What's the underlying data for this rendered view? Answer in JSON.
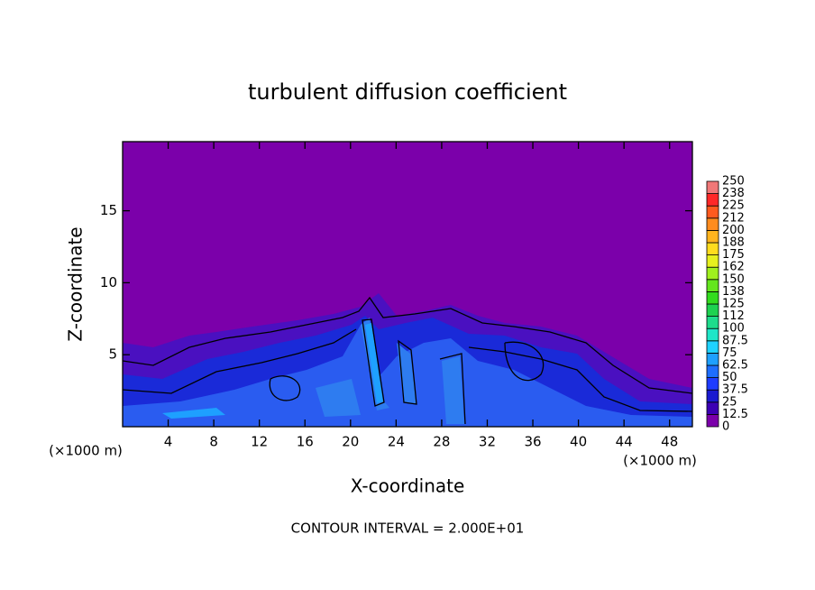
{
  "chart_data": {
    "type": "contour",
    "title": "turbulent diffusion coefficient",
    "x_label": "X-coordinate",
    "y_label": "Z-coordinate",
    "x_unit_label": "(×1000 m)",
    "y_unit_label": "(×1000 m)",
    "annotation": "CONTOUR INTERVAL = 2.000E+01",
    "xlim": [
      0,
      50
    ],
    "xticks": [
      4,
      8,
      12,
      16,
      20,
      24,
      28,
      32,
      36,
      40,
      44,
      48
    ],
    "ylim": [
      0,
      19.8
    ],
    "yticks": [
      5,
      10,
      15
    ],
    "colorbar": {
      "levels": [
        0,
        12.5,
        25,
        37.5,
        50,
        62.5,
        75,
        87.5,
        100,
        112,
        125,
        138,
        150,
        162,
        175,
        188,
        200,
        212,
        225,
        238,
        250
      ],
      "colors": [
        "#7b00aa",
        "#3c00b4",
        "#1a1ad0",
        "#1e3cff",
        "#1e6eff",
        "#1ea0ff",
        "#1ed2ff",
        "#1ee6c8",
        "#1edc8c",
        "#1ed250",
        "#32dc1e",
        "#64e61e",
        "#a0f01e",
        "#e6f01e",
        "#ffdc1e",
        "#ffb41e",
        "#ff8c1e",
        "#ff5a1e",
        "#ff2828",
        "#f07878"
      ]
    }
  }
}
